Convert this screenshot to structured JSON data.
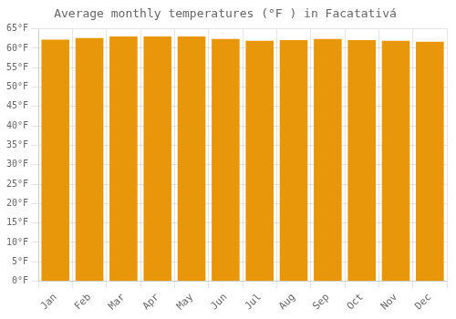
{
  "chart_data": {
    "type": "bar",
    "title": "Average monthly temperatures (°F ) in Facatativá",
    "categories": [
      "Jan",
      "Feb",
      "Mar",
      "Apr",
      "May",
      "Jun",
      "Jul",
      "Aug",
      "Sep",
      "Oct",
      "Nov",
      "Dec"
    ],
    "values": [
      62.2,
      62.6,
      63.0,
      63.0,
      63.0,
      62.4,
      61.9,
      62.1,
      62.4,
      62.1,
      61.9,
      61.7
    ],
    "color": "#E8960A",
    "ylim": [
      0,
      65
    ],
    "yticks": [
      {
        "value": 0,
        "label": "0°F"
      },
      {
        "value": 5,
        "label": "5°F"
      },
      {
        "value": 10,
        "label": "10°F"
      },
      {
        "value": 15,
        "label": "15°F"
      },
      {
        "value": 20,
        "label": "20°F"
      },
      {
        "value": 25,
        "label": "25°F"
      },
      {
        "value": 30,
        "label": "30°F"
      },
      {
        "value": 35,
        "label": "35°F"
      },
      {
        "value": 40,
        "label": "40°F"
      },
      {
        "value": 45,
        "label": "45°F"
      },
      {
        "value": 50,
        "label": "50°F"
      },
      {
        "value": 55,
        "label": "55°F"
      },
      {
        "value": 60,
        "label": "60°F"
      },
      {
        "value": 65,
        "label": "65°F"
      }
    ],
    "grid": true
  }
}
